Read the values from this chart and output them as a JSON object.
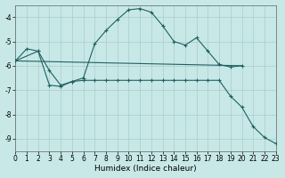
{
  "xlabel": "Humidex (Indice chaleur)",
  "xlim": [
    0,
    23
  ],
  "ylim": [
    -9.5,
    -3.5
  ],
  "yticks": [
    -9,
    -8,
    -7,
    -6,
    -5,
    -4
  ],
  "xticks": [
    0,
    1,
    2,
    3,
    4,
    5,
    6,
    7,
    8,
    9,
    10,
    11,
    12,
    13,
    14,
    15,
    16,
    17,
    18,
    19,
    20,
    21,
    22,
    23
  ],
  "background_color": "#c8e8e8",
  "grid_color": "#aacccc",
  "line_color": "#206060",
  "curve1": {
    "x": [
      0,
      1,
      2,
      3,
      4,
      5,
      6,
      7,
      8,
      9,
      10,
      11,
      12,
      13,
      14,
      15,
      16,
      17,
      18,
      19,
      20
    ],
    "y": [
      -5.8,
      -5.3,
      -5.4,
      -6.2,
      -6.8,
      -6.65,
      -6.5,
      -5.1,
      -4.55,
      -4.1,
      -3.7,
      -3.65,
      -3.8,
      -4.35,
      -5.0,
      -5.15,
      -4.85,
      -5.4,
      -5.95,
      -6.05,
      -6.0
    ]
  },
  "curve2": {
    "x": [
      0,
      20
    ],
    "y": [
      -5.8,
      -6.0
    ]
  },
  "curve3": {
    "x": [
      0,
      2,
      3,
      4,
      5,
      6,
      7,
      8,
      9,
      10,
      11,
      12,
      13,
      14,
      15,
      16,
      17,
      18,
      19,
      20,
      21,
      22,
      23
    ],
    "y": [
      -5.8,
      -5.4,
      -6.8,
      -6.85,
      -6.65,
      -6.6,
      -6.6,
      -6.6,
      -6.6,
      -6.6,
      -6.6,
      -6.6,
      -6.6,
      -6.6,
      -6.6,
      -6.6,
      -6.6,
      -6.6,
      -7.25,
      -7.7,
      -8.5,
      -8.95,
      -9.2
    ]
  }
}
